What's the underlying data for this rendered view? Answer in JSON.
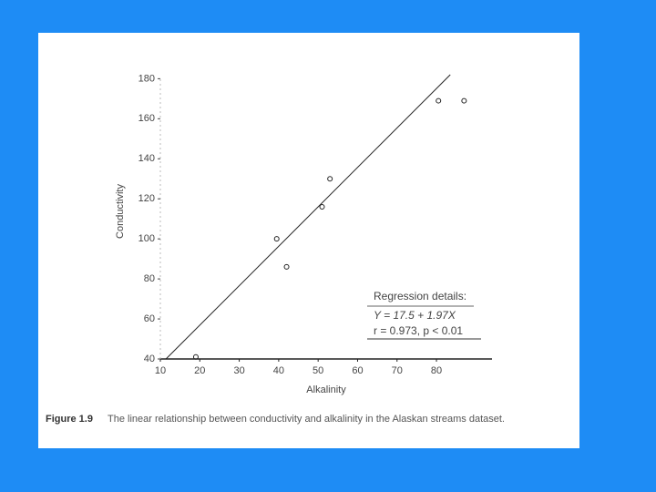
{
  "chart_data": {
    "type": "scatter",
    "x_label": "Alkalinity",
    "y_label": "Conductivity",
    "x": [
      19,
      39.5,
      42,
      51,
      53,
      80.5,
      87
    ],
    "values": [
      41,
      100,
      86,
      116,
      130,
      169,
      169
    ],
    "color": "#222222",
    "xlim": [
      10,
      92
    ],
    "ylim": [
      40,
      182
    ],
    "xticks": [
      10,
      20,
      30,
      40,
      50,
      60,
      70,
      80
    ],
    "yticks": [
      40,
      60,
      80,
      100,
      120,
      140,
      160,
      180
    ],
    "fit": {
      "intercept": 17.5,
      "slope": 1.97
    },
    "annotation": {
      "title": "Regression details:",
      "equation": "Y = 17.5 + 1.97X",
      "stats": "r = 0.973, p < 0.01"
    },
    "caption": {
      "label": "Figure 1.9",
      "text": "The linear relationship between conductivity and alkalinity in the Alaskan streams dataset."
    }
  }
}
